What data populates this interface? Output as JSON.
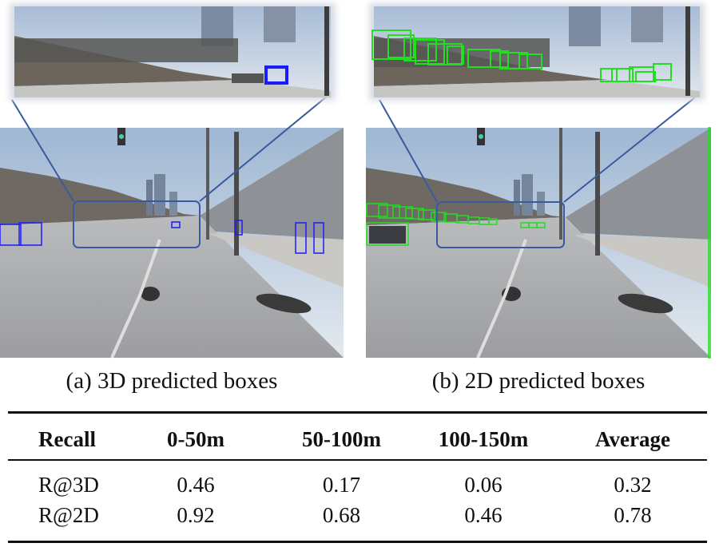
{
  "figure": {
    "panel_a": {
      "caption": "(a) 3D predicted boxes",
      "box_color": "#1a1aff"
    },
    "panel_b": {
      "caption": "(b) 2D predicted boxes",
      "box_color": "#22dd22"
    },
    "zoom_outline_color": "#3a5aa0"
  },
  "table": {
    "columns": [
      "Recall",
      "0-50m",
      "50-100m",
      "100-150m",
      "Average"
    ],
    "rows": [
      {
        "label": "R@3D",
        "values": [
          "0.46",
          "0.17",
          "0.06",
          "0.32"
        ]
      },
      {
        "label": "R@2D",
        "values": [
          "0.92",
          "0.68",
          "0.46",
          "0.78"
        ]
      }
    ]
  }
}
